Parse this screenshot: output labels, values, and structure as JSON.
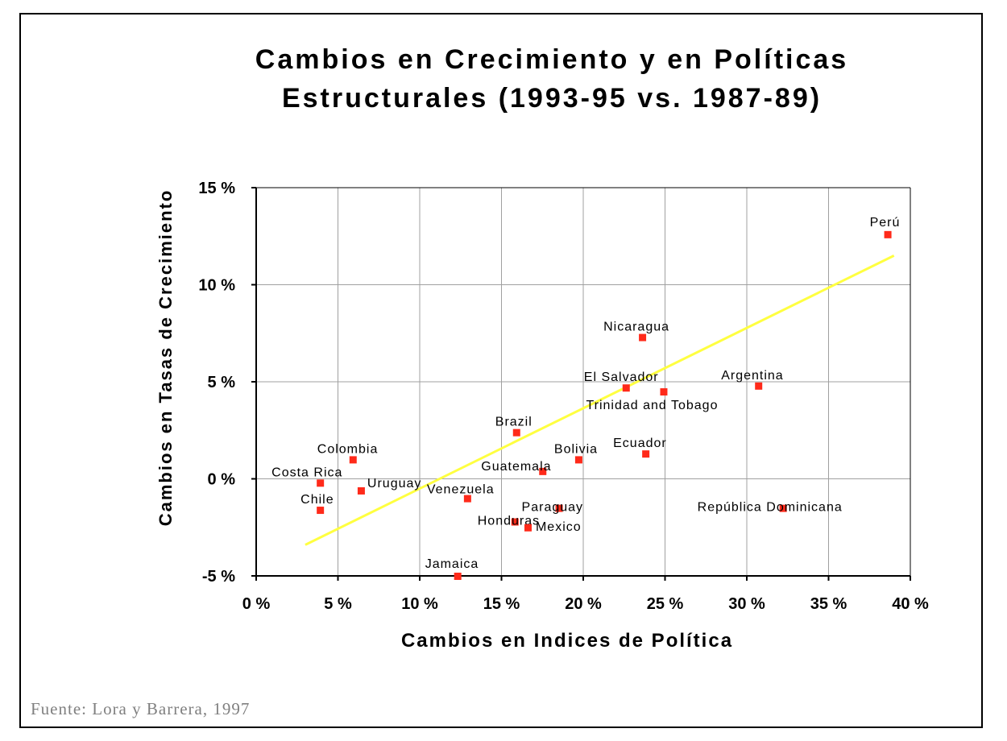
{
  "chart_data": {
    "type": "scatter",
    "title_lines": [
      "Cambios en Crecimiento y en Políticas",
      "Estructurales (1993-95 vs. 1987-89)"
    ],
    "xlabel": "Cambios en Indices de Política",
    "ylabel": "Cambios en Tasas de Crecimiento",
    "xlim": [
      0,
      40
    ],
    "ylim": [
      -5,
      15
    ],
    "x_ticks": [
      0,
      5,
      10,
      15,
      20,
      25,
      30,
      35,
      40
    ],
    "y_ticks": [
      -5,
      0,
      5,
      10,
      15
    ],
    "x_tick_labels": [
      "0 %",
      "5 %",
      "10 %",
      "15 %",
      "20 %",
      "25 %",
      "30 %",
      "35 %",
      "40 %"
    ],
    "y_tick_labels": [
      "-5 %",
      "0 %",
      "5 %",
      "10 %",
      "15 %"
    ],
    "grid": true,
    "marker_color": "#ff2a1a",
    "trendline": {
      "color": "#ffff40",
      "x": [
        3,
        39
      ],
      "y": [
        -3.4,
        11.5
      ]
    },
    "points": [
      {
        "label": "Perú",
        "x": 38.6,
        "y": 12.6
      },
      {
        "label": "Nicaragua",
        "x": 23.6,
        "y": 7.3
      },
      {
        "label": "El Salvador",
        "x": 22.6,
        "y": 4.7
      },
      {
        "label": "Trinidad and Tobago",
        "x": 24.9,
        "y": 4.5
      },
      {
        "label": "Argentina",
        "x": 30.7,
        "y": 4.8
      },
      {
        "label": "Brazil",
        "x": 15.9,
        "y": 2.4
      },
      {
        "label": "Ecuador",
        "x": 23.8,
        "y": 1.3
      },
      {
        "label": "Bolivia",
        "x": 19.7,
        "y": 1.0
      },
      {
        "label": "Guatemala",
        "x": 17.5,
        "y": 0.4
      },
      {
        "label": "Colombia",
        "x": 5.9,
        "y": 1.0
      },
      {
        "label": "Costa Rica",
        "x": 3.9,
        "y": -0.2
      },
      {
        "label": "Uruguay",
        "x": 6.4,
        "y": -0.6
      },
      {
        "label": "Chile",
        "x": 3.9,
        "y": -1.6
      },
      {
        "label": "Venezuela",
        "x": 12.9,
        "y": -1.0
      },
      {
        "label": "Paraguay",
        "x": 18.5,
        "y": -1.5
      },
      {
        "label": "Honduras",
        "x": 15.8,
        "y": -2.2
      },
      {
        "label": "Mexico",
        "x": 16.6,
        "y": -2.5
      },
      {
        "label": "República Dominicana",
        "x": 32.2,
        "y": -1.5
      },
      {
        "label": "Jamaica",
        "x": 12.3,
        "y": -5.0
      }
    ]
  },
  "source": "Fuente: Lora y Barrera, 1997"
}
